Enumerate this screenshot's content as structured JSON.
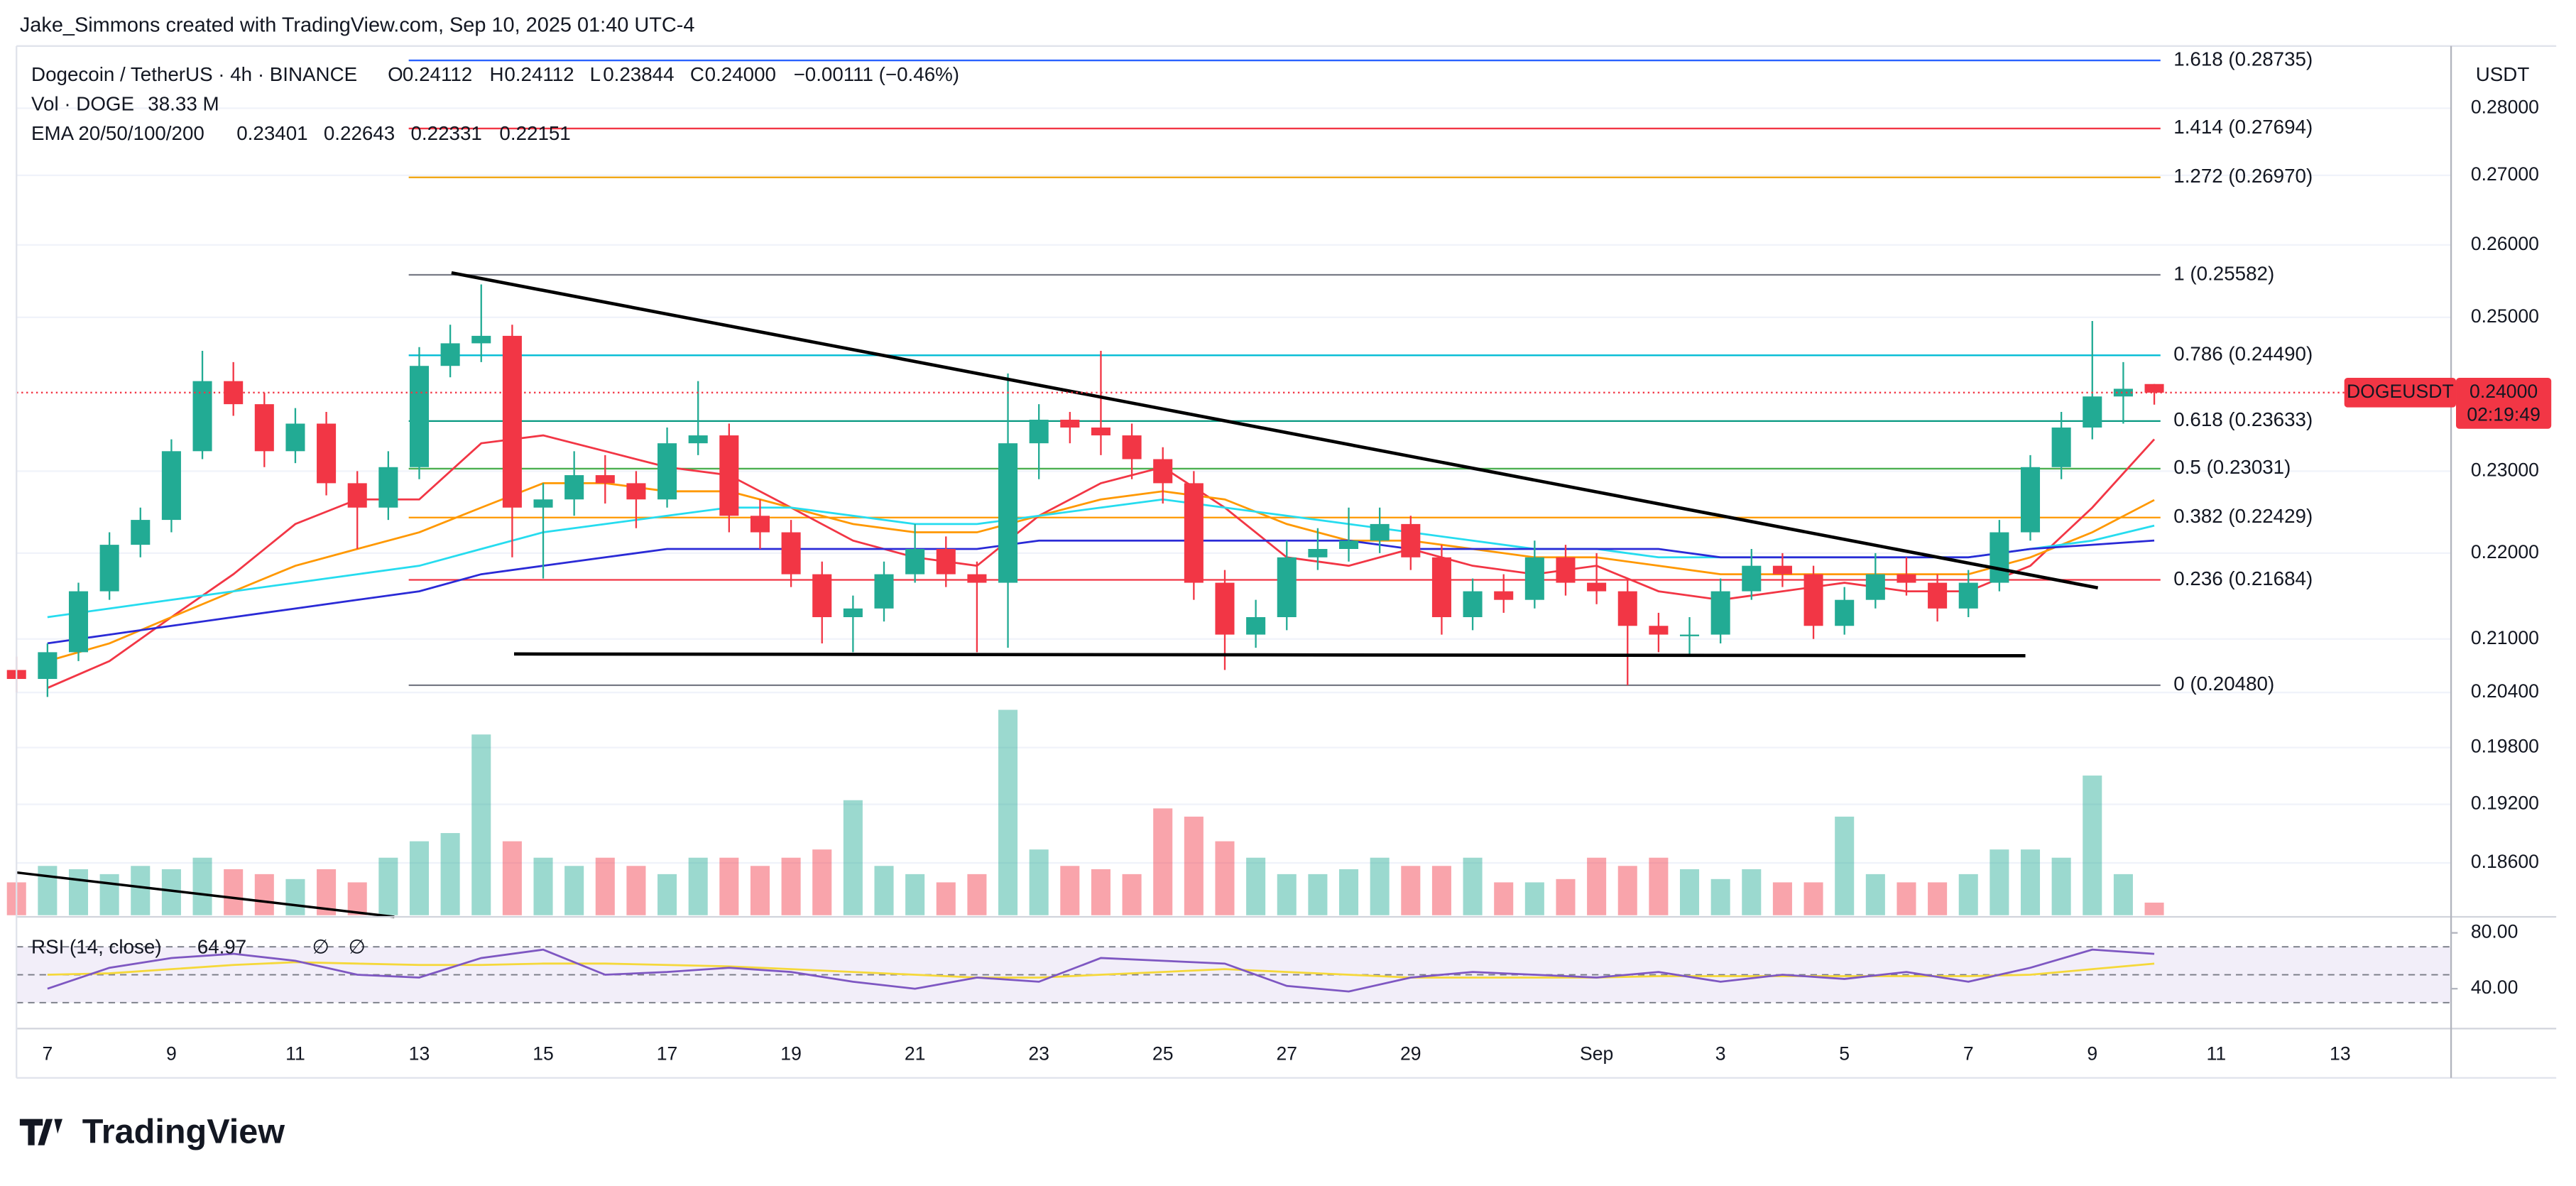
{
  "header": {
    "credit": "Jake_Simmons created with TradingView.com, Sep 10, 2025 01:40 UTC-4"
  },
  "chart_data": {
    "type": "candlestick",
    "symbol": "Dogecoin / TetherUS · 4h · BINANCE",
    "ohlc_legend": {
      "open_prefix": "O",
      "open": "0.24112",
      "high_prefix": "H",
      "high": "0.24112",
      "low_prefix": "L",
      "low": "0.23844",
      "close_prefix": "C",
      "close": "0.24000",
      "change": "−0.00111 (−0.46%)"
    },
    "currency": "USDT",
    "log_scale": true,
    "grid": true,
    "xlim": [
      -0.5,
      38.79
    ],
    "xticks": [
      {
        "value": 0,
        "label": "7"
      },
      {
        "value": 2,
        "label": "9"
      },
      {
        "value": 4,
        "label": "11"
      },
      {
        "value": 6,
        "label": "13"
      },
      {
        "value": 8,
        "label": "15"
      },
      {
        "value": 10,
        "label": "17"
      },
      {
        "value": 12,
        "label": "19"
      },
      {
        "value": 14,
        "label": "21"
      },
      {
        "value": 16,
        "label": "23"
      },
      {
        "value": 18,
        "label": "25"
      },
      {
        "value": 20,
        "label": "27"
      },
      {
        "value": 22,
        "label": "29"
      },
      {
        "value": 25,
        "label": "Sep"
      },
      {
        "value": 27,
        "label": "3"
      },
      {
        "value": 29,
        "label": "5"
      },
      {
        "value": 31,
        "label": "7"
      },
      {
        "value": 33,
        "label": "9"
      },
      {
        "value": 35,
        "label": "11"
      },
      {
        "value": 37,
        "label": "13"
      }
    ],
    "ylim": [
      0.1808,
      0.2896
    ],
    "yticks": [
      {
        "value": 0.28,
        "label": "0.28000"
      },
      {
        "value": 0.27,
        "label": "0.27000"
      },
      {
        "value": 0.26,
        "label": "0.26000"
      },
      {
        "value": 0.25,
        "label": "0.25000"
      },
      {
        "value": 0.23,
        "label": "0.23000"
      },
      {
        "value": 0.22,
        "label": "0.22000"
      },
      {
        "value": 0.21,
        "label": "0.21000"
      },
      {
        "value": 0.204,
        "label": "0.20400"
      },
      {
        "value": 0.198,
        "label": "0.19800"
      },
      {
        "value": 0.192,
        "label": "0.19200"
      },
      {
        "value": 0.186,
        "label": "0.18600"
      }
    ],
    "up_color": "#22ab94",
    "down_color": "#f23645",
    "candles": {
      "x": [
        -0.5,
        0,
        0.5,
        1,
        1.5,
        2,
        2.5,
        3,
        3.5,
        4,
        4.5,
        5,
        5.5,
        6,
        6.5,
        7,
        7.5,
        8,
        8.5,
        9,
        9.5,
        10,
        10.5,
        11,
        11.5,
        12,
        12.5,
        13,
        13.5,
        14,
        14.5,
        15,
        15.5,
        16,
        16.5,
        17,
        17.5,
        18,
        18.5,
        19,
        19.5,
        20,
        20.5,
        21,
        21.5,
        22,
        22.5,
        23,
        23.5,
        24,
        24.5,
        25,
        25.5,
        26,
        26.5,
        27,
        27.5,
        28,
        28.5,
        29,
        29.5,
        30,
        30.5,
        31,
        31.5,
        32,
        32.5,
        33,
        33.5,
        34
      ],
      "open": [
        0.2065,
        0.2055,
        0.2085,
        0.2155,
        0.221,
        0.224,
        0.2325,
        0.2415,
        0.2385,
        0.2325,
        0.236,
        0.2285,
        0.2255,
        0.2305,
        0.2435,
        0.2465,
        0.2475,
        0.2255,
        0.2265,
        0.2295,
        0.2285,
        0.2265,
        0.2335,
        0.2345,
        0.2245,
        0.2225,
        0.2175,
        0.2125,
        0.2135,
        0.2175,
        0.2205,
        0.2175,
        0.2165,
        0.2335,
        0.2365,
        0.2355,
        0.2345,
        0.2315,
        0.2285,
        0.2165,
        0.2105,
        0.2125,
        0.2195,
        0.2205,
        0.2215,
        0.2235,
        0.2195,
        0.2125,
        0.2155,
        0.2145,
        0.2195,
        0.2165,
        0.2155,
        0.2115,
        0.2105,
        0.2105,
        0.2155,
        0.2185,
        0.2175,
        0.2115,
        0.2145,
        0.2175,
        0.2165,
        0.2135,
        0.2165,
        0.2225,
        0.2305,
        0.2355,
        0.2395,
        0.24112
      ],
      "high": [
        0.208,
        0.2095,
        0.2165,
        0.2225,
        0.2255,
        0.234,
        0.2455,
        0.244,
        0.24,
        0.238,
        0.2375,
        0.23,
        0.2325,
        0.246,
        0.249,
        0.2545,
        0.249,
        0.2285,
        0.2325,
        0.232,
        0.23,
        0.2355,
        0.2415,
        0.236,
        0.2265,
        0.224,
        0.219,
        0.215,
        0.219,
        0.2235,
        0.222,
        0.219,
        0.2425,
        0.2385,
        0.2375,
        0.2455,
        0.236,
        0.233,
        0.23,
        0.218,
        0.2145,
        0.2215,
        0.223,
        0.2255,
        0.2255,
        0.2245,
        0.221,
        0.217,
        0.2175,
        0.2215,
        0.221,
        0.22,
        0.217,
        0.213,
        0.2125,
        0.217,
        0.2205,
        0.22,
        0.2185,
        0.216,
        0.22,
        0.2195,
        0.2175,
        0.218,
        0.224,
        0.232,
        0.2375,
        0.2495,
        0.244,
        0.24112
      ],
      "low": [
        0.204,
        0.2035,
        0.2075,
        0.2145,
        0.2195,
        0.2225,
        0.2315,
        0.237,
        0.2305,
        0.231,
        0.227,
        0.2205,
        0.224,
        0.229,
        0.242,
        0.244,
        0.2195,
        0.217,
        0.2245,
        0.226,
        0.223,
        0.2255,
        0.232,
        0.2225,
        0.2205,
        0.216,
        0.2095,
        0.2085,
        0.212,
        0.2165,
        0.216,
        0.2085,
        0.209,
        0.229,
        0.2335,
        0.232,
        0.229,
        0.226,
        0.2145,
        0.2065,
        0.209,
        0.211,
        0.218,
        0.219,
        0.22,
        0.218,
        0.2105,
        0.211,
        0.213,
        0.2135,
        0.215,
        0.214,
        0.2048,
        0.2085,
        0.208,
        0.2095,
        0.2145,
        0.216,
        0.21,
        0.2105,
        0.2135,
        0.215,
        0.212,
        0.2125,
        0.2155,
        0.2215,
        0.229,
        0.234,
        0.236,
        0.23844
      ],
      "close": [
        0.2055,
        0.2085,
        0.2155,
        0.221,
        0.224,
        0.2325,
        0.2415,
        0.2385,
        0.2325,
        0.236,
        0.2285,
        0.2255,
        0.2305,
        0.2435,
        0.2465,
        0.2475,
        0.2255,
        0.2265,
        0.2295,
        0.2285,
        0.2265,
        0.2335,
        0.2345,
        0.2245,
        0.2225,
        0.2175,
        0.2125,
        0.2135,
        0.2175,
        0.2205,
        0.2175,
        0.2165,
        0.2335,
        0.2365,
        0.2355,
        0.2345,
        0.2315,
        0.2285,
        0.2165,
        0.2105,
        0.2125,
        0.2195,
        0.2205,
        0.2215,
        0.2235,
        0.2195,
        0.2125,
        0.2155,
        0.2145,
        0.2195,
        0.2165,
        0.2155,
        0.2115,
        0.2105,
        0.2105,
        0.2155,
        0.2185,
        0.2175,
        0.2115,
        0.2145,
        0.2175,
        0.2165,
        0.2135,
        0.2165,
        0.2225,
        0.2305,
        0.2355,
        0.2395,
        0.2405,
        0.24
      ]
    },
    "volume": {
      "label": "Vol · DOGE",
      "value_label": "38.33 M",
      "ylim": [
        0,
        700000000
      ],
      "values": [
        100000000,
        150000000,
        140000000,
        125000000,
        150000000,
        140000000,
        175000000,
        140000000,
        125000000,
        110000000,
        140000000,
        100000000,
        175000000,
        225000000,
        250000000,
        550000000,
        225000000,
        175000000,
        150000000,
        175000000,
        150000000,
        125000000,
        175000000,
        175000000,
        150000000,
        175000000,
        200000000,
        350000000,
        150000000,
        125000000,
        100000000,
        125000000,
        625000000,
        200000000,
        150000000,
        140000000,
        125000000,
        325000000,
        300000000,
        225000000,
        175000000,
        125000000,
        125000000,
        140000000,
        175000000,
        150000000,
        150000000,
        175000000,
        100000000,
        100000000,
        110000000,
        175000000,
        150000000,
        175000000,
        140000000,
        110000000,
        140000000,
        100000000,
        100000000,
        300000000,
        125000000,
        100000000,
        100000000,
        125000000,
        200000000,
        200000000,
        175000000,
        425000000,
        125000000,
        38330000
      ]
    },
    "ema": {
      "label": "EMA 20/50/100/200",
      "x": [
        0,
        1,
        2,
        3,
        4,
        5,
        6,
        7,
        8,
        9,
        10,
        11,
        12,
        13,
        14,
        15,
        16,
        17,
        18,
        19,
        20,
        21,
        22,
        23,
        24,
        25,
        26,
        27,
        28,
        29,
        30,
        31,
        32,
        33,
        34
      ],
      "series": [
        {
          "color": "#f23645",
          "values": [
            0.2045,
            0.2075,
            0.2125,
            0.2175,
            0.2235,
            0.2265,
            0.2265,
            0.2335,
            0.2345,
            0.2325,
            0.2305,
            0.2295,
            0.2255,
            0.2215,
            0.2195,
            0.2185,
            0.2245,
            0.2285,
            0.2305,
            0.2255,
            0.2195,
            0.2185,
            0.2205,
            0.2185,
            0.2175,
            0.2185,
            0.2155,
            0.2145,
            0.2155,
            0.2165,
            0.2155,
            0.2155,
            0.2185,
            0.2255,
            0.23401
          ]
        },
        {
          "color": "#ff9800",
          "values": [
            0.2075,
            0.2095,
            0.2125,
            0.2155,
            0.2185,
            0.2205,
            0.2225,
            0.2255,
            0.2285,
            0.2285,
            0.2275,
            0.2275,
            0.2255,
            0.2235,
            0.2225,
            0.2225,
            0.2245,
            0.2265,
            0.2275,
            0.2265,
            0.2235,
            0.2215,
            0.2215,
            0.2205,
            0.2195,
            0.2195,
            0.2185,
            0.2175,
            0.2175,
            0.2175,
            0.2175,
            0.2175,
            0.2195,
            0.2225,
            0.22643
          ]
        },
        {
          "color": "#26dcef",
          "values": [
            0.2125,
            0.2135,
            0.2145,
            0.2155,
            0.2165,
            0.2175,
            0.2185,
            0.2205,
            0.2225,
            0.2235,
            0.2245,
            0.2255,
            0.2255,
            0.2245,
            0.2235,
            0.2235,
            0.2245,
            0.2255,
            0.2265,
            0.2255,
            0.2245,
            0.2235,
            0.2225,
            0.2215,
            0.2205,
            0.2205,
            0.2195,
            0.2195,
            0.2195,
            0.2195,
            0.2195,
            0.2195,
            0.2205,
            0.2215,
            0.22331
          ]
        },
        {
          "color": "#2a2ad6",
          "values": [
            0.2095,
            0.2105,
            0.2115,
            0.2125,
            0.2135,
            0.2145,
            0.2155,
            0.2175,
            0.2185,
            0.2195,
            0.2205,
            0.2205,
            0.2205,
            0.2205,
            0.2205,
            0.2205,
            0.2215,
            0.2215,
            0.2215,
            0.2215,
            0.2215,
            0.2215,
            0.2205,
            0.2205,
            0.2205,
            0.2205,
            0.2205,
            0.2195,
            0.2195,
            0.2195,
            0.2195,
            0.2195,
            0.2205,
            0.221,
            0.22151
          ]
        }
      ]
    },
    "fib": {
      "xlim": [
        5.83,
        34.1
      ],
      "levels": [
        {
          "label": "1.618 (0.28735)",
          "value": 0.28735,
          "color": "#2962ff"
        },
        {
          "label": "1.414 (0.27694)",
          "value": 0.27694,
          "color": "#f23645"
        },
        {
          "label": "1.272 (0.26970)",
          "value": 0.2697,
          "color": "#f0a30a"
        },
        {
          "label": "1 (0.25582)",
          "value": 0.25582,
          "color": "#787b86"
        },
        {
          "label": "0.786 (0.24490)",
          "value": 0.2449,
          "color": "#00bcd4"
        },
        {
          "label": "0.618 (0.23633)",
          "value": 0.23633,
          "color": "#089981"
        },
        {
          "label": "0.5 (0.23031)",
          "value": 0.23031,
          "color": "#4caf50"
        },
        {
          "label": "0.382 (0.22429)",
          "value": 0.22429,
          "color": "#ff9800"
        },
        {
          "label": "0.236 (0.21684)",
          "value": 0.21684,
          "color": "#f23645"
        },
        {
          "label": "0 (0.20480)",
          "value": 0.2048,
          "color": "#787b86"
        }
      ]
    },
    "trendlines": [
      {
        "x": [
          6.52,
          33.09
        ],
        "values": [
          0.2561,
          0.2159
        ],
        "color": "#000000"
      },
      {
        "x": [
          7.53,
          31.92
        ],
        "values": [
          0.2083,
          0.2081
        ],
        "color": "#000000"
      }
    ],
    "last_price": {
      "symbol": "DOGEUSDT",
      "value": 0.24,
      "value_label": "0.24000",
      "countdown": "02:19:49",
      "color": "#f23645"
    },
    "rsi": {
      "label": "RSI (14, close)",
      "na_labels": [
        "∅",
        "∅"
      ],
      "color": "#7e57c2",
      "ma_color": "#f5d83a",
      "ylim": [
        12.6,
        90.3
      ],
      "yticks": [
        {
          "value": 80,
          "label": "80.00"
        },
        {
          "value": 40,
          "label": "40.00"
        }
      ],
      "levels": [
        70,
        50,
        30
      ],
      "x": [
        0,
        1,
        2,
        3,
        4,
        5,
        6,
        7,
        8,
        9,
        10,
        11,
        12,
        13,
        14,
        15,
        16,
        17,
        18,
        19,
        20,
        21,
        22,
        23,
        24,
        25,
        26,
        27,
        28,
        29,
        30,
        31,
        32,
        33,
        34
      ],
      "values": [
        40,
        55,
        62,
        65,
        60,
        50,
        48,
        62,
        68,
        50,
        52,
        55,
        52,
        45,
        40,
        48,
        45,
        62,
        60,
        58,
        42,
        38,
        48,
        52,
        50,
        48,
        52,
        45,
        50,
        47,
        52,
        45,
        55,
        68,
        64.97
      ],
      "ma_values": [
        50,
        51,
        54,
        57,
        59,
        58,
        57,
        57,
        58,
        58,
        57,
        56,
        54,
        52,
        50,
        48,
        48,
        50,
        52,
        54,
        52,
        50,
        48,
        48,
        48,
        48,
        49,
        49,
        49,
        49,
        49,
        49,
        50,
        54,
        58
      ]
    }
  },
  "footer": {
    "logo": "TradingView"
  }
}
